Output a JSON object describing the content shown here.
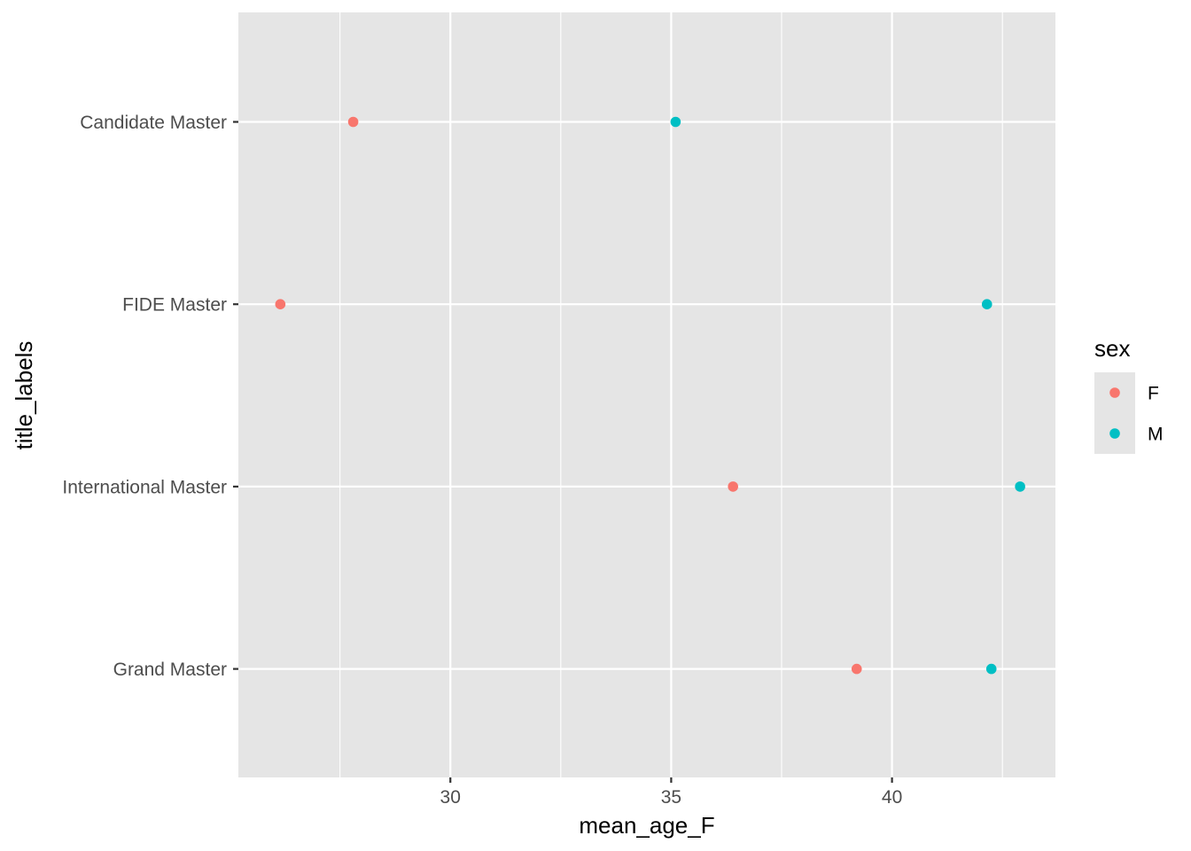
{
  "chart_data": {
    "type": "scatter",
    "xlabel": "mean_age_F",
    "ylabel": "title_labels",
    "xlim": [
      25.2,
      43.7
    ],
    "x_ticks": [
      30,
      35,
      40
    ],
    "x_tick_labels": [
      "30",
      "35",
      "40"
    ],
    "categories": [
      "Candidate Master",
      "FIDE Master",
      "International Master",
      "Grand Master"
    ],
    "grid": true,
    "legend": {
      "title": "sex",
      "position": "right",
      "entries": [
        {
          "label": "F",
          "color": "#F8766D"
        },
        {
          "label": "M",
          "color": "#00BFC4"
        }
      ]
    },
    "series": [
      {
        "name": "F",
        "color": "#F8766D",
        "values": [
          27.8,
          26.15,
          36.4,
          39.2
        ]
      },
      {
        "name": "M",
        "color": "#00BFC4",
        "values": [
          35.1,
          42.15,
          42.9,
          42.25
        ]
      }
    ]
  }
}
